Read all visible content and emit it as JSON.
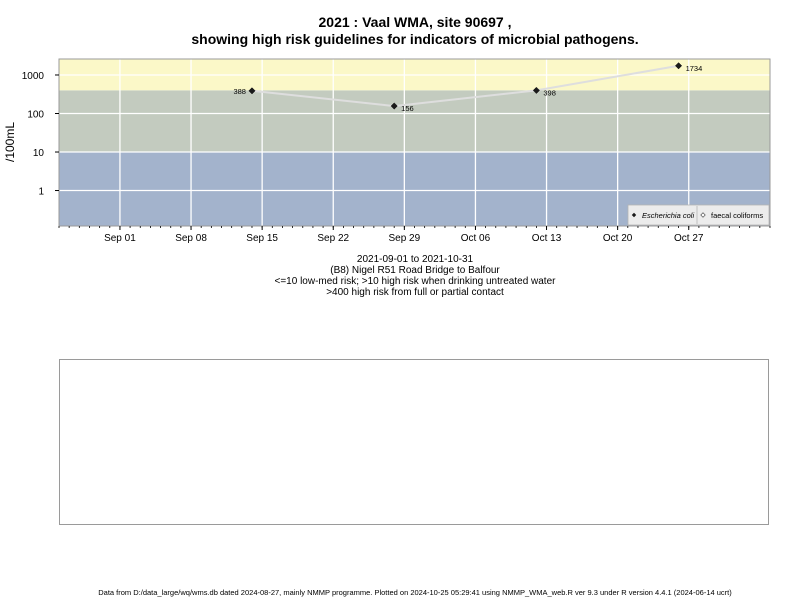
{
  "header": {
    "title_line1": "2021 : Vaal WMA, site 90697 ,",
    "title_line2": "showing high risk guidelines for indicators of microbial pathogens."
  },
  "subtitles": {
    "date_range": "2021-09-01 to 2021-10-31",
    "site_name": "(B8) Nigel R51 Road Bridge to Balfour",
    "risk_line1": "<=10 low-med risk; >10 high risk when drinking untreated water",
    "risk_line2": ">400 high risk from full or partial contact"
  },
  "footer": {
    "text": "Data from D:/data_large/wq/wms.db dated 2024-08-27, mainly NMMP programme. Plotted on 2024-10-25 05:29:41 using NMMP_WMA_web.R ver 9.3 under R version 4.4.1 (2024-06-14 ucrt)"
  },
  "chart_data": {
    "type": "line",
    "ylabel": "/100mL",
    "y_scale": "log",
    "ylim": [
      0.12,
      2600
    ],
    "xlim": [
      "2021-08-26",
      "2021-11-04"
    ],
    "y_ticks": [
      1,
      10,
      100,
      1000
    ],
    "y_tick_labels": [
      "1",
      "10",
      "100",
      "1000"
    ],
    "x_ticks": [
      "2021-09-01",
      "2021-09-08",
      "2021-09-15",
      "2021-09-22",
      "2021-09-29",
      "2021-10-06",
      "2021-10-13",
      "2021-10-20",
      "2021-10-27"
    ],
    "x_tick_labels": [
      "Sep 01",
      "Sep 08",
      "Sep 15",
      "Sep 22",
      "Sep 29",
      "Oct 06",
      "Oct 13",
      "Oct 20",
      "Oct 27"
    ],
    "bands": [
      {
        "from": 0.12,
        "to": 10,
        "color": "#a3b3cc"
      },
      {
        "from": 10,
        "to": 400,
        "color": "#c3cbbf"
      },
      {
        "from": 400,
        "to": 2600,
        "color": "#fbf8c8"
      }
    ],
    "grid": true,
    "legend_position": "bottom-right",
    "series": [
      {
        "name": "Escherichia coli",
        "marker": "filled diamond",
        "color": "#1a1a1a",
        "line_color": "#dedede",
        "points": [
          {
            "x": "2021-09-14",
            "y": 388,
            "label": "388",
            "label_side": "left"
          },
          {
            "x": "2021-09-28",
            "y": 156,
            "label": "156",
            "label_side": "right"
          },
          {
            "x": "2021-10-12",
            "y": 398,
            "label": "398",
            "label_side": "right"
          },
          {
            "x": "2021-10-26",
            "y": 1734,
            "label": "1734",
            "label_side": "right"
          }
        ]
      },
      {
        "name": "faecal coliforms",
        "marker": "open diamond",
        "color": "#555555",
        "points": []
      }
    ]
  }
}
